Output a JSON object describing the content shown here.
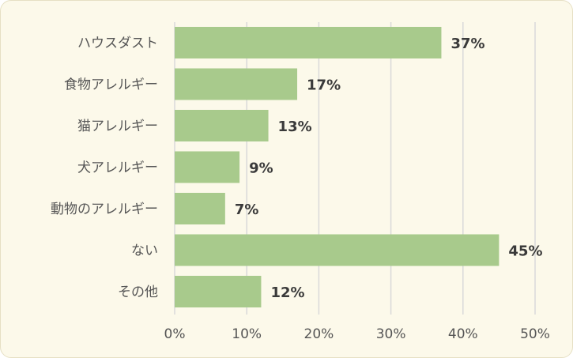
{
  "chart_data": {
    "type": "bar",
    "orientation": "horizontal",
    "categories": [
      "ハウスダスト",
      "食物アレルギー",
      "猫アレルギー",
      "犬アレルギー",
      "動物のアレルギー",
      "ない",
      "その他"
    ],
    "values": [
      37,
      17,
      13,
      9,
      7,
      45,
      12
    ],
    "value_labels": [
      "37%",
      "17%",
      "13%",
      "9%",
      "7%",
      "45%",
      "12%"
    ],
    "x_ticks": [
      "0%",
      "10%",
      "20%",
      "30%",
      "40%",
      "50%"
    ],
    "xlim": [
      0,
      50
    ],
    "grid": true,
    "bar_color": "#a8ca8c",
    "background_color": "#fcf9ea",
    "title": "",
    "xlabel": "",
    "ylabel": ""
  }
}
